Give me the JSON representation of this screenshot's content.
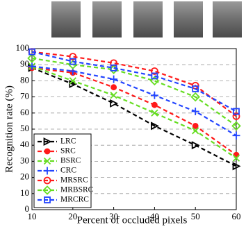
{
  "chart_data": {
    "type": "line",
    "xlabel": "Percent of occluded pixels",
    "ylabel": "Recognition rate (%)",
    "x": [
      10,
      20,
      30,
      40,
      50,
      60
    ],
    "xlim": [
      10,
      60
    ],
    "xticks": [
      10,
      20,
      30,
      40,
      50,
      60
    ],
    "ylim": [
      0,
      100
    ],
    "yticks": [
      0,
      10,
      20,
      30,
      40,
      50,
      60,
      70,
      80,
      90,
      100
    ],
    "grid": true,
    "legend": "lower left",
    "series": [
      {
        "name": "LRC",
        "color": "#000000",
        "marker": "triangle-right",
        "values": [
          88,
          78,
          66,
          52,
          40,
          27
        ]
      },
      {
        "name": "SRC",
        "color": "#ff1a1a",
        "marker": "circle",
        "values": [
          88,
          85,
          76,
          65,
          52,
          34
        ]
      },
      {
        "name": "BSRC",
        "color": "#66dd22",
        "marker": "x",
        "values": [
          89,
          80,
          71,
          60,
          49,
          32
        ]
      },
      {
        "name": "CRC",
        "color": "#2244ff",
        "marker": "plus",
        "values": [
          89,
          86,
          81,
          71,
          61,
          46
        ]
      },
      {
        "name": "MRSRC",
        "color": "#ff1a1a",
        "marker": "circle-open",
        "values": [
          98,
          95,
          91,
          86,
          77,
          58
        ]
      },
      {
        "name": "MRBSRC",
        "color": "#66dd22",
        "marker": "diamond-open",
        "values": [
          94,
          90,
          87,
          80,
          70,
          52
        ]
      },
      {
        "name": "MRCRC",
        "color": "#2244ff",
        "marker": "square-open",
        "values": [
          98,
          92,
          88,
          83,
          75,
          61
        ]
      }
    ]
  }
}
